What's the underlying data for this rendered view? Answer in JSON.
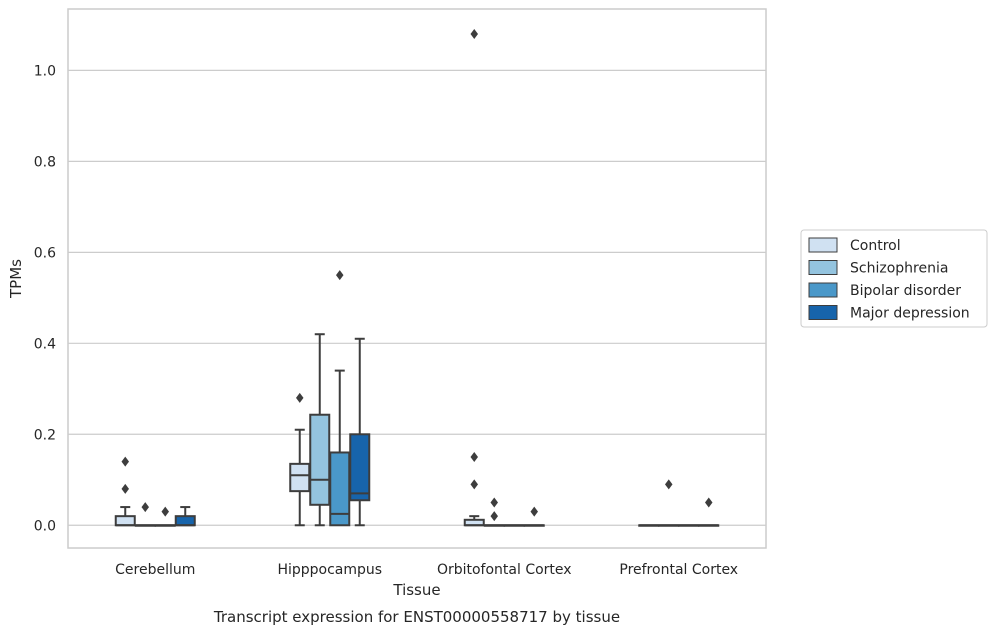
{
  "chart_data": {
    "type": "boxplot",
    "title": "",
    "caption": "Transcript expression for ENST00000558717 by tissue",
    "xlabel": "Tissue",
    "ylabel": "TPMs",
    "ylim": [
      -0.05,
      1.135
    ],
    "yticks": [
      0.0,
      0.2,
      0.4,
      0.6,
      0.8,
      1.0
    ],
    "ytick_labels": [
      "0.0",
      "0.2",
      "0.4",
      "0.6",
      "0.8",
      "1.0"
    ],
    "grid": true,
    "legend_position": "right",
    "categories": [
      "Cerebellum",
      "Hipppocampus",
      "Orbitofontal Cortex",
      "Prefrontal Cortex"
    ],
    "series": [
      {
        "name": "Control",
        "color": "#d0e1f2",
        "boxes": [
          {
            "whislo": 0.0,
            "q1": 0.0,
            "med": 0.0,
            "q3": 0.02,
            "whishi": 0.04,
            "fliers": [
              0.08,
              0.14
            ]
          },
          {
            "whislo": 0.0,
            "q1": 0.075,
            "med": 0.11,
            "q3": 0.135,
            "whishi": 0.21,
            "fliers": [
              0.28
            ]
          },
          {
            "whislo": 0.0,
            "q1": 0.0,
            "med": 0.0,
            "q3": 0.012,
            "whishi": 0.02,
            "fliers": [
              0.09,
              0.15,
              1.08
            ]
          },
          {
            "whislo": 0.0,
            "q1": 0.0,
            "med": 0.0,
            "q3": 0.0,
            "whishi": 0.0,
            "fliers": []
          }
        ]
      },
      {
        "name": "Schizophrenia",
        "color": "#94c4df",
        "boxes": [
          {
            "whislo": 0.0,
            "q1": 0.0,
            "med": 0.0,
            "q3": 0.0,
            "whishi": 0.0,
            "fliers": [
              0.04
            ]
          },
          {
            "whislo": 0.0,
            "q1": 0.045,
            "med": 0.1,
            "q3": 0.243,
            "whishi": 0.42,
            "fliers": []
          },
          {
            "whislo": 0.0,
            "q1": 0.0,
            "med": 0.0,
            "q3": 0.0,
            "whishi": 0.0,
            "fliers": [
              0.02,
              0.05
            ]
          },
          {
            "whislo": 0.0,
            "q1": 0.0,
            "med": 0.0,
            "q3": 0.0,
            "whishi": 0.0,
            "fliers": [
              0.09
            ]
          }
        ]
      },
      {
        "name": "Bipolar disorder",
        "color": "#4a98c9",
        "boxes": [
          {
            "whislo": 0.0,
            "q1": 0.0,
            "med": 0.0,
            "q3": 0.0,
            "whishi": 0.0,
            "fliers": [
              0.03
            ]
          },
          {
            "whislo": 0.0,
            "q1": 0.0,
            "med": 0.025,
            "q3": 0.16,
            "whishi": 0.34,
            "fliers": [
              0.55
            ]
          },
          {
            "whislo": 0.0,
            "q1": 0.0,
            "med": 0.0,
            "q3": 0.0,
            "whishi": 0.0,
            "fliers": []
          },
          {
            "whislo": 0.0,
            "q1": 0.0,
            "med": 0.0,
            "q3": 0.0,
            "whishi": 0.0,
            "fliers": []
          }
        ]
      },
      {
        "name": "Major depression",
        "color": "#1764ab",
        "boxes": [
          {
            "whislo": 0.0,
            "q1": 0.0,
            "med": 0.0,
            "q3": 0.02,
            "whishi": 0.04,
            "fliers": []
          },
          {
            "whislo": 0.0,
            "q1": 0.055,
            "med": 0.07,
            "q3": 0.2,
            "whishi": 0.41,
            "fliers": []
          },
          {
            "whislo": 0.0,
            "q1": 0.0,
            "med": 0.0,
            "q3": 0.0,
            "whishi": 0.0,
            "fliers": [
              0.03
            ]
          },
          {
            "whislo": 0.0,
            "q1": 0.0,
            "med": 0.0,
            "q3": 0.0,
            "whishi": 0.0,
            "fliers": [
              0.05
            ]
          }
        ]
      }
    ]
  }
}
